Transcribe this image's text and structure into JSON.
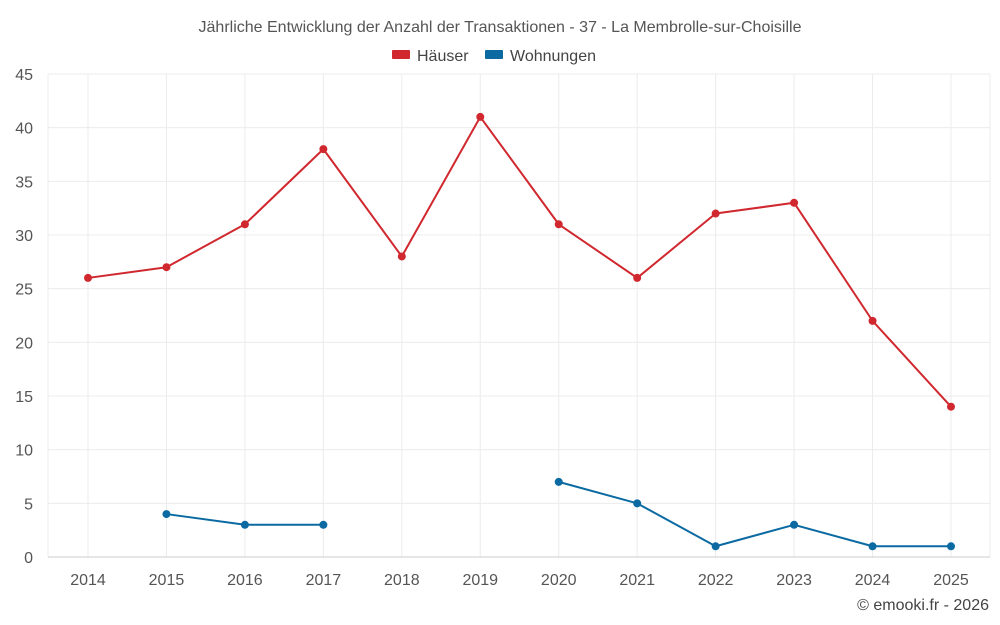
{
  "chart_data": {
    "type": "line",
    "title": "Jährliche Entwicklung der Anzahl der Transaktionen - 37 - La Membrolle-sur-Choisille",
    "categories": [
      "2014",
      "2015",
      "2016",
      "2017",
      "2018",
      "2019",
      "2020",
      "2021",
      "2022",
      "2023",
      "2024",
      "2025"
    ],
    "series": [
      {
        "name": "Häuser",
        "color": "#d0282e",
        "values": [
          26,
          27,
          31,
          38,
          28,
          41,
          31,
          26,
          32,
          33,
          22,
          14
        ]
      },
      {
        "name": "Wohnungen",
        "color": "#0b6aa2",
        "values": [
          null,
          4,
          3,
          3,
          null,
          null,
          7,
          5,
          1,
          3,
          1,
          1
        ]
      }
    ],
    "ylim": [
      0,
      45
    ],
    "yticks": [
      0,
      5,
      10,
      15,
      20,
      25,
      30,
      35,
      40,
      45
    ],
    "xlabel": "",
    "ylabel": "",
    "grid": true,
    "legend_position": "top-center",
    "credit": "© emooki.fr - 2026"
  }
}
